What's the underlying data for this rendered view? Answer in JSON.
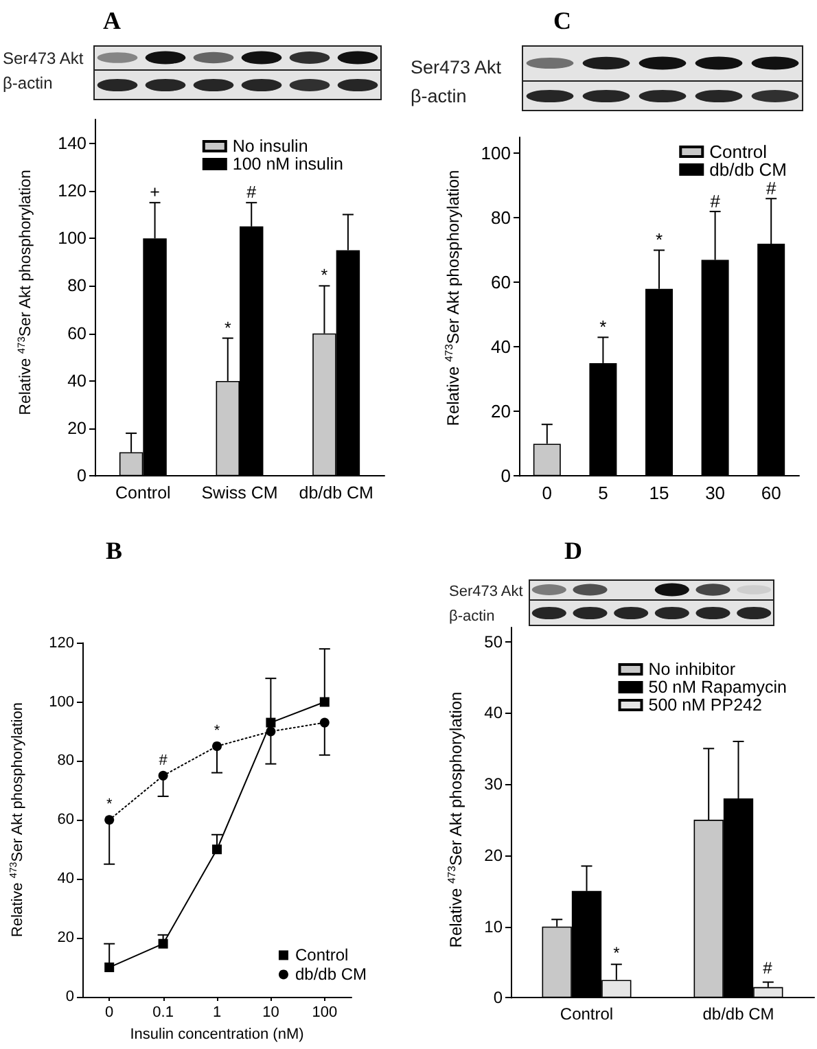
{
  "chart_data": [
    {
      "type": "bar",
      "title": "A",
      "ylabel": "Relative $^{473}$Ser Akt phosphorylation",
      "categories": [
        "Control",
        "Swiss CM",
        "db/db CM"
      ],
      "series": [
        {
          "name": "No insulin",
          "color": "#c8c8c8",
          "values": [
            10,
            40,
            60
          ],
          "errors": [
            [
              10,
              18
            ],
            [
              40,
              58
            ],
            [
              60,
              80
            ]
          ]
        },
        {
          "name": "100 nM insulin",
          "color": "#000000",
          "values": [
            100,
            105,
            95
          ],
          "errors": [
            [
              100,
              115
            ],
            [
              105,
              115
            ],
            [
              95,
              110
            ]
          ]
        }
      ],
      "ylim": [
        0,
        150
      ],
      "yticks": [
        0,
        20,
        40,
        60,
        80,
        100,
        120,
        140
      ],
      "legend": "top right",
      "annotations": [
        "Ser473 Akt",
        "β-actin",
        {
          "text": "+",
          "x": "Control",
          "y": 100
        },
        {
          "text": "#",
          "x": "Swiss CM",
          "y": 105
        },
        {
          "text": "*",
          "x": "Swiss CM",
          "y": 40
        },
        {
          "text": "*",
          "x": "db/db CM",
          "y": 60
        }
      ]
    },
    {
      "type": "bar",
      "title": "C",
      "ylabel": "Relative $^{473}$Ser Akt phosphorylation",
      "categories": [
        "0",
        "5",
        "15",
        "30",
        "60"
      ],
      "series": [
        {
          "name": "Control",
          "color": "#c8c8c8",
          "values": [
            10,
            null,
            null,
            null,
            null
          ],
          "errors": [
            [
              10,
              16
            ],
            null,
            null,
            null,
            null
          ]
        },
        {
          "name": "db/db CM",
          "color": "#000000",
          "values": [
            null,
            35,
            58,
            67,
            72
          ],
          "errors": [
            null,
            [
              35,
              43
            ],
            [
              58,
              70
            ],
            [
              67,
              82
            ],
            [
              72,
              86
            ]
          ]
        }
      ],
      "ylim": [
        0,
        105
      ],
      "yticks": [
        0,
        20,
        40,
        60,
        80,
        100
      ],
      "legend": "top right",
      "annotations": [
        "Ser473 Akt",
        "β-actin",
        {
          "text": "*",
          "x": "5",
          "y": 35
        },
        {
          "text": "*",
          "x": "15",
          "y": 58
        },
        {
          "text": "#",
          "x": "30",
          "y": 67
        },
        {
          "text": "#",
          "x": "60",
          "y": 72
        }
      ]
    },
    {
      "type": "line",
      "title": "B",
      "xlabel": "Insulin concentration (nM)",
      "ylabel": "Relative $^{473}$Ser Akt phosphorylation",
      "categories": [
        "0",
        "0.1",
        "1",
        "10",
        "100"
      ],
      "series": [
        {
          "name": "Control",
          "color": "#000000",
          "marker": "square",
          "line_style": "solid",
          "values": [
            10,
            18,
            50,
            93,
            100
          ],
          "errors": [
            [
              10,
              18
            ],
            [
              18,
              21
            ],
            [
              50,
              55
            ],
            [
              93,
              108
            ],
            [
              100,
              118
            ]
          ]
        },
        {
          "name": "db/db CM",
          "color": "#000000",
          "marker": "circle",
          "line_style": "dotted",
          "values": [
            60,
            75,
            85,
            90,
            93
          ],
          "errors": [
            [
              45,
              60
            ],
            [
              68,
              75
            ],
            [
              76,
              85
            ],
            [
              79,
              90
            ],
            [
              82,
              93
            ]
          ]
        }
      ],
      "ylim": [
        0,
        120
      ],
      "yticks": [
        0,
        20,
        40,
        60,
        80,
        100,
        120
      ],
      "legend": "bottom right",
      "annotations": [
        {
          "text": "*",
          "x": "0",
          "y": 60
        },
        {
          "text": "#",
          "x": "0.1",
          "y": 75
        },
        {
          "text": "*",
          "x": "1",
          "y": 85
        }
      ]
    },
    {
      "type": "bar",
      "title": "D",
      "ylabel": "Relative $^{473}$Ser Akt phosphorylation",
      "categories": [
        "Control",
        "db/db CM"
      ],
      "series": [
        {
          "name": "No inhibitor",
          "color": "#c8c8c8",
          "values": [
            10,
            25
          ],
          "errors": [
            [
              10,
              11
            ],
            [
              25,
              35
            ]
          ]
        },
        {
          "name": "50 nM Rapamycin",
          "color": "#000000",
          "values": [
            15,
            28
          ],
          "errors": [
            [
              15,
              18.5
            ],
            [
              28,
              36
            ]
          ]
        },
        {
          "name": "500 nM PP242",
          "color": "#e6e6e6",
          "values": [
            2.5,
            1.5
          ],
          "errors": [
            [
              2.5,
              4.7
            ],
            [
              1.5,
              2.2
            ]
          ]
        }
      ],
      "ylim": [
        0,
        52
      ],
      "yticks": [
        0,
        10,
        20,
        30,
        40,
        50
      ],
      "legend": "top right",
      "annotations": [
        "Ser473 Akt",
        "β-actin",
        "*",
        "#"
      ]
    }
  ]
}
